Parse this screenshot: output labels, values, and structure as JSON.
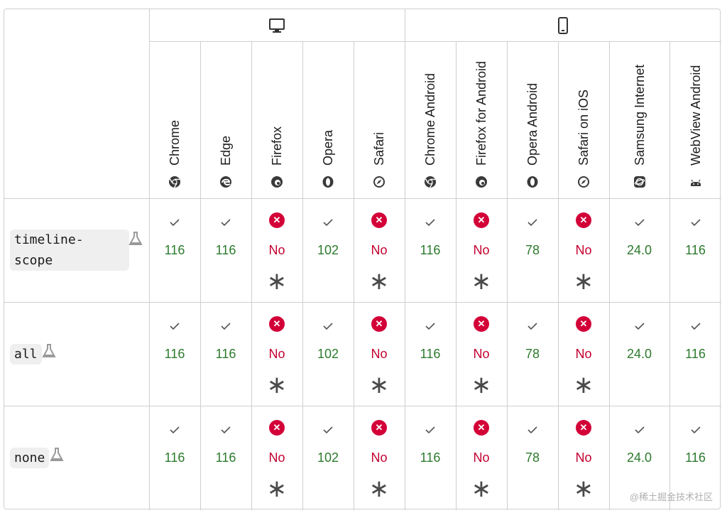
{
  "platforms": [
    {
      "name": "desktop-icon"
    },
    {
      "name": "mobile-icon"
    }
  ],
  "browsers": [
    {
      "label": "Chrome",
      "icon": "chrome-icon"
    },
    {
      "label": "Edge",
      "icon": "edge-icon"
    },
    {
      "label": "Firefox",
      "icon": "firefox-icon"
    },
    {
      "label": "Opera",
      "icon": "opera-icon"
    },
    {
      "label": "Safari",
      "icon": "safari-icon"
    },
    {
      "label": "Chrome Android",
      "icon": "chrome-icon"
    },
    {
      "label": "Firefox for Android",
      "icon": "firefox-icon"
    },
    {
      "label": "Opera Android",
      "icon": "opera-icon"
    },
    {
      "label": "Safari on iOS",
      "icon": "safari-icon"
    },
    {
      "label": "Samsung Internet",
      "icon": "samsung-internet-icon"
    },
    {
      "label": "WebView Android",
      "icon": "android-icon"
    }
  ],
  "features": [
    {
      "label": "timeline-scope",
      "line1": "timeline-",
      "line2": "scope",
      "versions": [
        "116",
        "116",
        "No",
        "102",
        "No",
        "116",
        "No",
        "78",
        "No",
        "24.0",
        "116"
      ]
    },
    {
      "label": "all",
      "line1": "all",
      "line2": "",
      "versions": [
        "116",
        "116",
        "No",
        "102",
        "No",
        "116",
        "No",
        "78",
        "No",
        "24.0",
        "116"
      ]
    },
    {
      "label": "none",
      "line1": "none",
      "line2": "",
      "versions": [
        "116",
        "116",
        "No",
        "102",
        "No",
        "116",
        "No",
        "78",
        "No",
        "24.0",
        "116"
      ]
    }
  ],
  "support": [
    "yes",
    "yes",
    "no",
    "yes",
    "no",
    "yes",
    "no",
    "yes",
    "no",
    "yes",
    "yes"
  ],
  "colors": {
    "yes": "#2c7a2d",
    "no": "#c3002f",
    "noBadge": "#d30038",
    "border": "#cfcfcf"
  },
  "watermark": "@稀土掘金技术社区"
}
